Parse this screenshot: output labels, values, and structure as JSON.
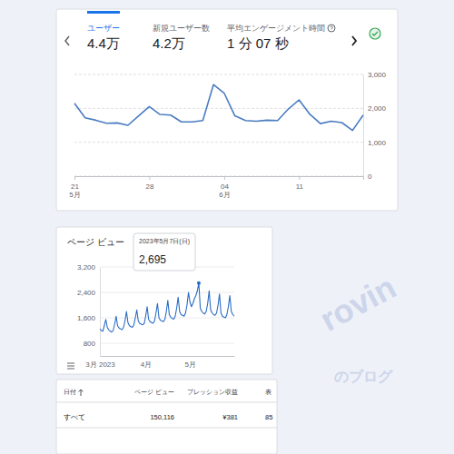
{
  "header": {
    "tabs": [
      {
        "label": "ユーザー",
        "value": "4.4万"
      },
      {
        "label": "新規ユーザー数",
        "value": "4.2万"
      },
      {
        "label": "平均エンゲージメント時間",
        "value": "1 分 07 秒"
      }
    ]
  },
  "chart_data": [
    {
      "type": "line",
      "color": "#4a7cc1",
      "categories": [
        "21\n5月",
        null,
        null,
        null,
        null,
        null,
        null,
        "28",
        null,
        null,
        null,
        null,
        null,
        null,
        "04\n6月",
        null,
        null,
        null,
        null,
        null,
        null,
        "11",
        null,
        null,
        null,
        null,
        null,
        null
      ],
      "values": [
        2150,
        1720,
        1650,
        1560,
        1570,
        1500,
        1780,
        2050,
        1820,
        1800,
        1600,
        1600,
        1640,
        2700,
        2450,
        1780,
        1640,
        1620,
        1650,
        1640,
        1980,
        2250,
        1830,
        1550,
        1620,
        1580,
        1350,
        1800
      ],
      "ylim": [
        0,
        3000
      ],
      "yticks": [
        0,
        {
          "value": 1000,
          "label": "1,000"
        },
        {
          "value": 2000,
          "label": "2,000"
        },
        {
          "value": 3000,
          "label": "3,000"
        }
      ],
      "grid": true
    },
    {
      "type": "line",
      "title": "ページ ビュー",
      "color": "#2a6bc4",
      "categories": [
        "3月 2023",
        null,
        null,
        null,
        null,
        null,
        null,
        null,
        null,
        null,
        null,
        null,
        null,
        null,
        null,
        null,
        null,
        null,
        null,
        null,
        null,
        null,
        null,
        null,
        null,
        null,
        null,
        null,
        null,
        null,
        null,
        "4月",
        null,
        null,
        null,
        null,
        null,
        null,
        null,
        null,
        null,
        null,
        null,
        null,
        null,
        null,
        null,
        null,
        null,
        null,
        null,
        null,
        null,
        null,
        null,
        null,
        null,
        null,
        null,
        null,
        null,
        "5月",
        null,
        null,
        null,
        null,
        null,
        null,
        null,
        null,
        null,
        null,
        null,
        null,
        null,
        null,
        null,
        null,
        null,
        null,
        null,
        null,
        null,
        null,
        null,
        null,
        null,
        null,
        null,
        null,
        null,
        null
      ],
      "values": [
        1250,
        1200,
        1180,
        1350,
        1550,
        1300,
        1220,
        1180,
        1150,
        1200,
        1400,
        1650,
        1350,
        1280,
        1250,
        1230,
        1300,
        1500,
        1800,
        1450,
        1350,
        1320,
        1300,
        1380,
        1600,
        1850,
        1500,
        1420,
        1400,
        1380,
        1420,
        1650,
        1950,
        1550,
        1480,
        1450,
        1430,
        1500,
        1750,
        2050,
        1600,
        1520,
        1500,
        1480,
        1550,
        1800,
        2150,
        1700,
        1620,
        1580,
        1560,
        1650,
        1900,
        2250,
        1800,
        1700,
        1680,
        1650,
        1750,
        2000,
        2400,
        2100,
        1950,
        2050,
        2200,
        2300,
        2450,
        2695,
        1900,
        1800,
        1750,
        1720,
        1800,
        2050,
        2450,
        1850,
        1750,
        1700,
        1680,
        1750,
        2000,
        2350,
        1750,
        1650,
        1620,
        1600,
        1700,
        1950,
        2300,
        1800,
        1700,
        1650
      ],
      "ylim": [
        400,
        3200
      ],
      "yticks": [
        800,
        {
          "value": 1600,
          "label": "1,600"
        },
        {
          "value": 2400,
          "label": "2,400"
        },
        {
          "value": 3200,
          "label": "3,200"
        }
      ],
      "grid": true,
      "annotations": [
        {
          "text": "2023年5月7日(日)",
          "index": 67,
          "value": 2695,
          "label": "2,695"
        }
      ]
    }
  ],
  "table": {
    "columns": [
      "日付",
      "ページ ビュー",
      "プレッション収益",
      "表"
    ],
    "rows": [
      [
        "すべて",
        "150,116",
        "¥381",
        "85"
      ]
    ]
  },
  "watermark": {
    "logo": "rovin",
    "caption": "のブログ"
  }
}
